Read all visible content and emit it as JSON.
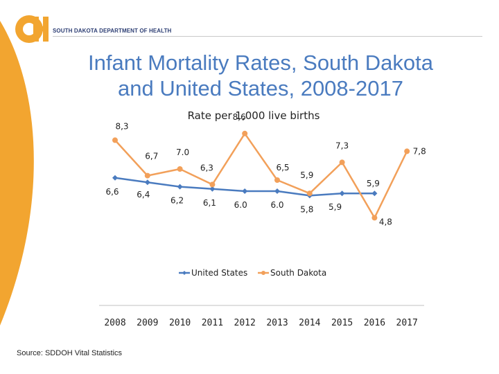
{
  "header": {
    "org_name": "SOUTH DAKOTA DEPARTMENT OF HEALTH",
    "brand_orange": "#f2a530",
    "brand_navy": "#2e3f74"
  },
  "title_line1": "Infant Mortality Rates, South Dakota",
  "title_line2": "and United States, 2008-2017",
  "source": "Source: SDDOH Vital Statistics",
  "chart_data": {
    "type": "line",
    "title": "Infant Mortality Rates, South Dakota and United States, 2008-2017",
    "subtitle": "Rate per 1,000 live births",
    "categories": [
      "2008",
      "2009",
      "2010",
      "2011",
      "2012",
      "2013",
      "2014",
      "2015",
      "2016",
      "2017"
    ],
    "series": [
      {
        "name": "United States",
        "color": "#4a7bbf",
        "values": [
          6.6,
          6.4,
          6.2,
          6.1,
          6.0,
          6.0,
          5.8,
          5.9,
          5.9,
          null
        ],
        "labels": [
          "6,6",
          "6,4",
          "6,2",
          "6,1",
          "6.0",
          "6.0",
          "5,8",
          "5,9",
          "5,9",
          null
        ]
      },
      {
        "name": "South Dakota",
        "color": "#f2a05a",
        "values": [
          8.3,
          6.7,
          7.0,
          6.3,
          8.6,
          6.5,
          5.9,
          7.3,
          4.8,
          7.8
        ],
        "labels": [
          "8,3",
          "6,7",
          "7.0",
          "6,3",
          "8,6",
          "6,5",
          "5,9",
          "7,3",
          "4,8",
          "7,8"
        ]
      }
    ],
    "ylim": [
      4,
      9
    ],
    "grid": false,
    "legend": "center"
  }
}
